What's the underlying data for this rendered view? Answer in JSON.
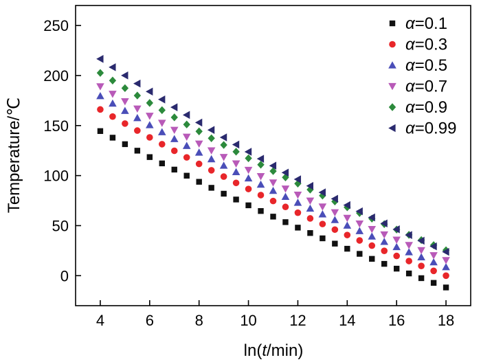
{
  "chart_data": {
    "type": "scatter",
    "title": "",
    "xlabel": {
      "prefix": "ln(",
      "italic": "t",
      "suffix": "/min)"
    },
    "ylabel": "Temperature/℃",
    "xlim": [
      3,
      19
    ],
    "ylim": [
      -30,
      270
    ],
    "xticks": [
      4,
      6,
      8,
      10,
      12,
      14,
      16,
      18
    ],
    "yticks": [
      0,
      50,
      100,
      150,
      200,
      250
    ],
    "x": [
      4.0,
      4.5,
      5.0,
      5.5,
      6.0,
      6.5,
      7.0,
      7.5,
      8.0,
      8.5,
      9.0,
      9.5,
      10.0,
      10.5,
      11.0,
      11.5,
      12.0,
      12.5,
      13.0,
      13.5,
      14.0,
      14.5,
      15.0,
      15.5,
      16.0,
      16.5,
      17.0,
      17.5,
      18.0
    ],
    "legend_position": "top-right",
    "series": [
      {
        "name": "α=0.1",
        "greek": "α",
        "value_label": "=0.1",
        "marker": "square",
        "color": "#111111",
        "values": [
          144.5,
          137.9,
          131.4,
          124.9,
          118.5,
          112.2,
          106.0,
          99.9,
          93.8,
          87.8,
          81.9,
          76.1,
          70.3,
          64.6,
          59.0,
          53.5,
          48.0,
          42.6,
          37.3,
          32.0,
          26.9,
          21.8,
          16.8,
          11.8,
          7.0,
          2.2,
          -2.5,
          -7.2,
          -11.8
        ]
      },
      {
        "name": "α=0.3",
        "greek": "α",
        "value_label": "=0.3",
        "marker": "circle",
        "color": "#e8262a",
        "values": [
          166.1,
          159.0,
          152.0,
          145.0,
          138.2,
          131.4,
          124.8,
          118.2,
          111.7,
          105.3,
          99.0,
          92.7,
          86.6,
          80.5,
          74.6,
          68.7,
          62.9,
          57.2,
          51.6,
          46.0,
          40.6,
          35.2,
          30.0,
          24.8,
          19.7,
          14.6,
          9.7,
          4.8,
          0.0
        ]
      },
      {
        "name": "α=0.5",
        "greek": "α",
        "value_label": "=0.5",
        "marker": "triangle-up",
        "color": "#4a4eb8",
        "values": [
          179.5,
          172.1,
          164.8,
          157.6,
          150.5,
          143.5,
          136.6,
          129.8,
          123.1,
          116.5,
          110.0,
          103.6,
          97.3,
          91.1,
          84.9,
          78.9,
          73.0,
          67.1,
          61.4,
          55.7,
          50.1,
          44.6,
          39.2,
          33.9,
          28.7,
          23.5,
          18.5,
          13.5,
          8.6
        ]
      },
      {
        "name": "α=0.7",
        "greek": "α",
        "value_label": "=0.7",
        "marker": "triangle-down",
        "color": "#b85ab8",
        "values": [
          189.1,
          181.6,
          174.2,
          166.9,
          159.7,
          152.6,
          145.6,
          138.7,
          131.9,
          125.1,
          118.5,
          112.0,
          105.6,
          99.3,
          93.0,
          86.9,
          80.8,
          74.9,
          69.0,
          63.2,
          57.6,
          52.0,
          46.5,
          41.1,
          35.8,
          30.5,
          25.4,
          20.3,
          15.4
        ]
      },
      {
        "name": "α=0.9",
        "greek": "α",
        "value_label": "=0.9",
        "marker": "diamond",
        "color": "#2c8a3c",
        "values": [
          202.6,
          195.0,
          187.4,
          180.0,
          172.6,
          165.4,
          158.2,
          151.1,
          144.2,
          137.3,
          130.6,
          123.9,
          117.3,
          110.9,
          104.5,
          98.2,
          92.0,
          86.0,
          80.0,
          74.1,
          68.3,
          62.6,
          57.0,
          51.5,
          46.1,
          40.8,
          35.6,
          30.5,
          25.4
        ]
      },
      {
        "name": "α=0.99",
        "greek": "α",
        "value_label": "=0.99",
        "marker": "triangle-left",
        "color": "#2a2a6e",
        "values": [
          216.6,
          208.3,
          200.1,
          192.0,
          184.0,
          176.1,
          168.3,
          160.6,
          153.0,
          145.6,
          138.2,
          131.0,
          123.8,
          116.8,
          109.9,
          103.0,
          96.3,
          89.7,
          83.2,
          76.8,
          70.5,
          64.3,
          58.2,
          52.2,
          46.3,
          40.6,
          34.9,
          29.3,
          23.8
        ]
      }
    ]
  }
}
